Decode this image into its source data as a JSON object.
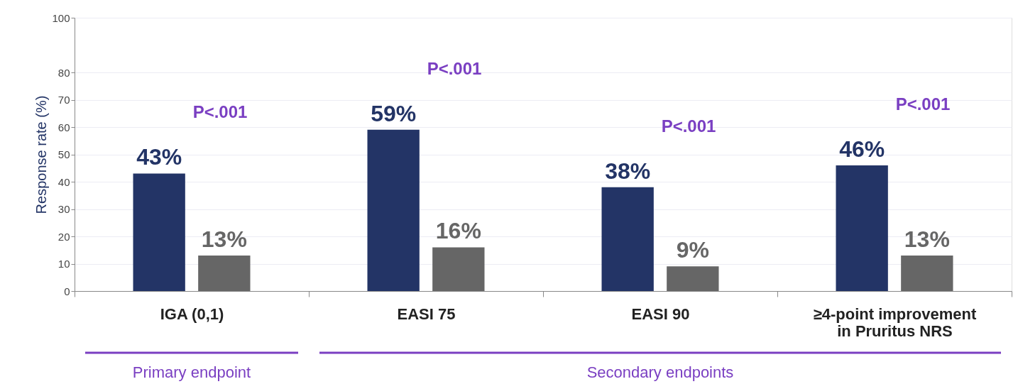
{
  "chart_data": {
    "type": "bar",
    "ylabel": "Response rate (%)",
    "categories": [
      "IGA (0,1)",
      "EASI 75",
      "EASI 90",
      "≥4-point improvement\nin Pruritus NRS"
    ],
    "series": [
      {
        "color": "#233466",
        "values": [
          43,
          59,
          38,
          46
        ],
        "value_labels": [
          "43%",
          "59%",
          "38%",
          "46%"
        ]
      },
      {
        "color": "#666666",
        "values": [
          13,
          16,
          9,
          13
        ],
        "value_labels": [
          "13%",
          "16%",
          "9%",
          "13%"
        ]
      }
    ],
    "ylim": [
      0,
      100
    ],
    "yticks": [
      0,
      10,
      20,
      30,
      40,
      50,
      60,
      70,
      80,
      100
    ],
    "grid": "y",
    "legend": false,
    "annotations": [
      "P<.001",
      "P<.001",
      "P<.001",
      "P<.001",
      "Primary endpoint",
      "Secondary endpoints"
    ]
  }
}
